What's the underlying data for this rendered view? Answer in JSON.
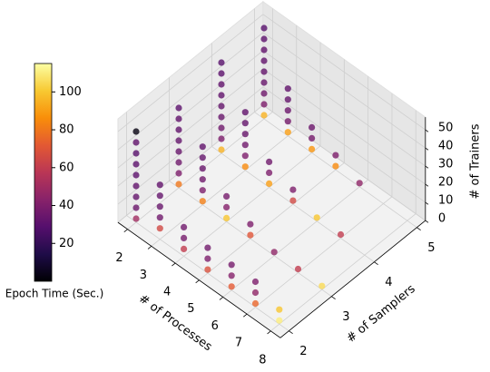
{
  "chart_data": {
    "type": "scatter3d",
    "xlabel": "# of Processes",
    "ylabel": "# of Samplers",
    "zlabel": "# of Trainers",
    "colorbar_label": "Epoch Time (Sec.)",
    "colormap": "inferno",
    "x": [
      2,
      2,
      2,
      2,
      2,
      2,
      2,
      2,
      2,
      3,
      3,
      3,
      3,
      3,
      4,
      4,
      4,
      5,
      5,
      5,
      6,
      6,
      6,
      7,
      7,
      7,
      8,
      8,
      2,
      2,
      2,
      2,
      2,
      2,
      2,
      2,
      3,
      3,
      3,
      3,
      3,
      3,
      4,
      4,
      4,
      5,
      5,
      6,
      7,
      8,
      2,
      2,
      2,
      2,
      2,
      2,
      2,
      2,
      2,
      3,
      3,
      3,
      3,
      3,
      3,
      4,
      4,
      4,
      5,
      5,
      6,
      7,
      2,
      2,
      2,
      2,
      2,
      2,
      2,
      2,
      2,
      3,
      3,
      3,
      3,
      3,
      4,
      4,
      4,
      5,
      5,
      6
    ],
    "y": [
      2,
      2,
      2,
      2,
      2,
      2,
      2,
      2,
      2,
      2,
      2,
      2,
      2,
      2,
      2,
      2,
      2,
      2,
      2,
      2,
      2,
      2,
      2,
      2,
      2,
      2,
      2,
      2,
      3,
      3,
      3,
      3,
      3,
      3,
      3,
      3,
      3,
      3,
      3,
      3,
      3,
      3,
      3,
      3,
      3,
      3,
      3,
      3,
      3,
      3,
      4,
      4,
      4,
      4,
      4,
      4,
      4,
      4,
      4,
      4,
      4,
      4,
      4,
      4,
      4,
      4,
      4,
      4,
      4,
      4,
      4,
      4,
      5,
      5,
      5,
      5,
      5,
      5,
      5,
      5,
      5,
      5,
      5,
      5,
      5,
      5,
      5,
      5,
      5,
      5,
      5,
      5
    ],
    "z": [
      2,
      8,
      14,
      20,
      26,
      32,
      38,
      44,
      50,
      6,
      12,
      18,
      24,
      30,
      4,
      10,
      16,
      2,
      8,
      14,
      2,
      8,
      14,
      2,
      8,
      14,
      2,
      8,
      2,
      8,
      14,
      20,
      26,
      32,
      38,
      44,
      2,
      8,
      14,
      20,
      26,
      32,
      2,
      8,
      14,
      2,
      8,
      2,
      2,
      2,
      2,
      8,
      14,
      20,
      26,
      32,
      38,
      44,
      50,
      2,
      8,
      14,
      20,
      26,
      32,
      2,
      8,
      14,
      2,
      8,
      2,
      2,
      2,
      8,
      14,
      20,
      26,
      32,
      38,
      44,
      50,
      2,
      8,
      14,
      20,
      26,
      2,
      8,
      14,
      2,
      8,
      2
    ],
    "c": [
      50,
      35,
      33,
      32,
      31,
      31,
      30,
      32,
      3,
      65,
      36,
      34,
      33,
      32,
      60,
      38,
      36,
      68,
      40,
      37,
      72,
      42,
      38,
      75,
      45,
      40,
      110,
      100,
      80,
      40,
      36,
      34,
      33,
      32,
      32,
      31,
      82,
      40,
      36,
      34,
      33,
      32,
      100,
      42,
      38,
      70,
      40,
      45,
      60,
      105,
      95,
      40,
      36,
      34,
      33,
      32,
      32,
      31,
      30,
      85,
      40,
      36,
      34,
      33,
      32,
      90,
      40,
      36,
      65,
      40,
      100,
      60,
      95,
      40,
      36,
      34,
      33,
      32,
      32,
      31,
      30,
      90,
      38,
      35,
      33,
      32,
      88,
      38,
      35,
      85,
      40,
      45
    ],
    "xlim": [
      2,
      8
    ],
    "ylim": [
      2,
      5
    ],
    "zlim": [
      0,
      55
    ],
    "clim": [
      0,
      115
    ],
    "xticks": [
      2,
      3,
      4,
      5,
      6,
      7,
      8
    ],
    "yticks": [
      2,
      3,
      4,
      5
    ],
    "zticks": [
      0,
      10,
      20,
      30,
      40,
      50
    ],
    "cticks": [
      20,
      40,
      60,
      80,
      100
    ],
    "grid": true
  }
}
